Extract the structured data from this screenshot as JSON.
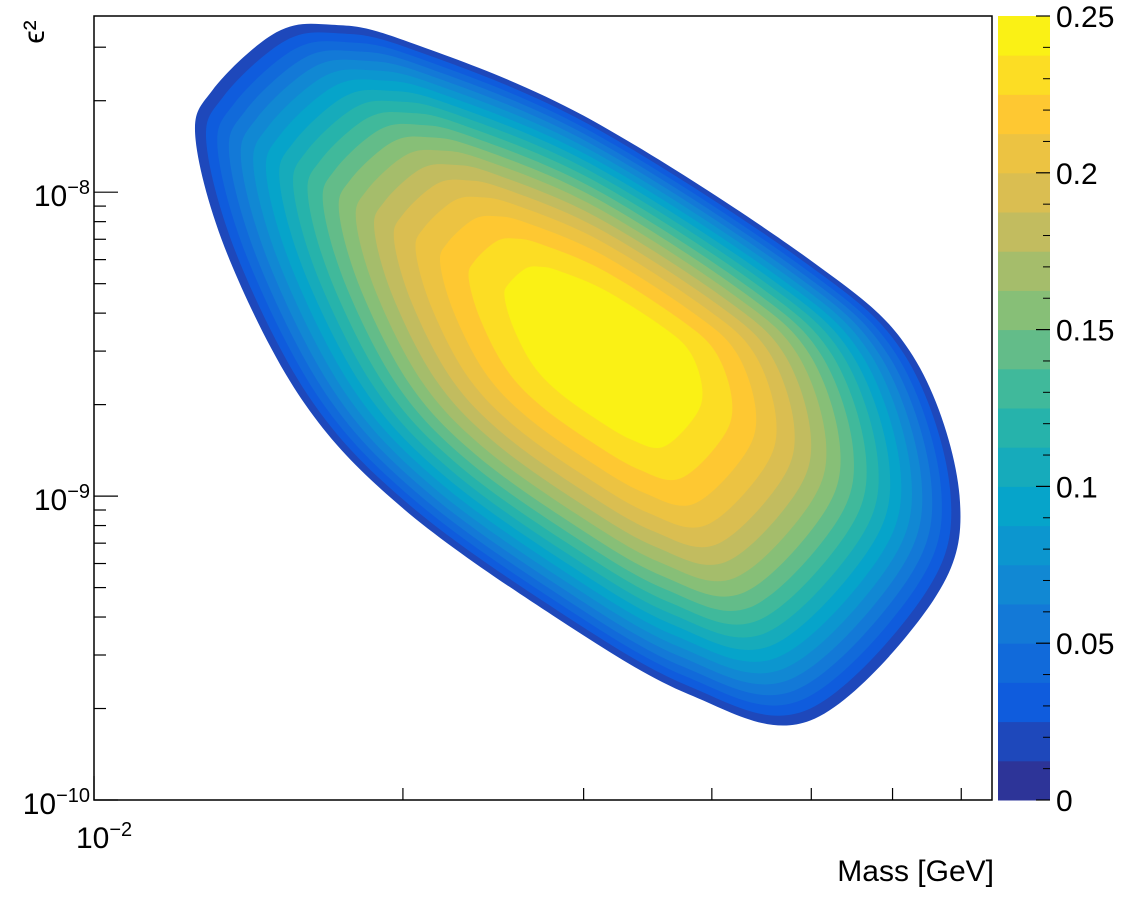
{
  "chart_data": {
    "type": "heatmap",
    "subtype": "filled-contour",
    "title": "",
    "xlabel": "Mass [GeV]",
    "ylabel": "ϵ²",
    "x_scale": "log",
    "y_scale": "log",
    "xlim": [
      0.01,
      0.075
    ],
    "ylim": [
      1e-10,
      3.8e-08
    ],
    "x_ticks": [
      {
        "value": 0.01,
        "base": "10",
        "exp": "−2"
      }
    ],
    "y_ticks": [
      {
        "value": 1e-10,
        "base": "10",
        "exp": "−10"
      },
      {
        "value": 1e-09,
        "base": "10",
        "exp": "−9"
      },
      {
        "value": 1e-08,
        "base": "10",
        "exp": "−8"
      }
    ],
    "z_range": [
      0,
      0.25
    ],
    "z_ticks": [
      "0",
      "0.05",
      "0.1",
      "0.15",
      "0.2",
      "0.25"
    ],
    "z_levels": 20,
    "peak": {
      "x": 0.032,
      "y": 3e-09,
      "z": 0.25
    },
    "outer_contour": [
      [
        0.013,
        2.2e-08
      ],
      [
        0.015,
        3.4e-08
      ],
      [
        0.017,
        3.6e-08
      ],
      [
        0.02,
        3.2e-08
      ],
      [
        0.03,
        1.8e-08
      ],
      [
        0.05,
        6e-09
      ],
      [
        0.063,
        2.9e-09
      ],
      [
        0.07,
        1e-09
      ],
      [
        0.066,
        4.5e-10
      ],
      [
        0.05,
        1.8e-10
      ],
      [
        0.038,
        2.2e-10
      ],
      [
        0.028,
        4e-10
      ],
      [
        0.02,
        9e-10
      ],
      [
        0.016,
        2e-09
      ],
      [
        0.0135,
        6e-09
      ],
      [
        0.0125,
        1.5e-08
      ]
    ],
    "grid": false,
    "legend": "colorbar-right",
    "colormap": "kBird"
  }
}
